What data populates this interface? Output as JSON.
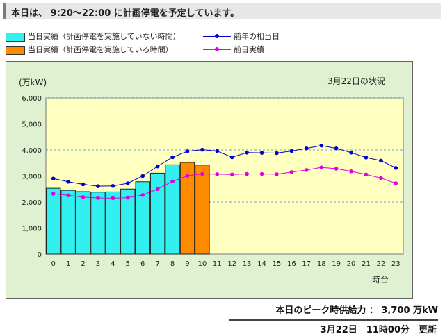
{
  "notice": "本日は、 9:20～22:00 に計画停電を予定しています。",
  "legend": {
    "actual_no_outage": "当日実績（計画停電を実施していない時間）",
    "actual_outage": "当日実績（計画停電を実施している時間）",
    "last_year": "前年の相当日",
    "previous_day": "前日実績"
  },
  "colors": {
    "bar_no_outage": "#33f0f0",
    "bar_outage": "#ff8a00",
    "line_last_year": "#0000cc",
    "line_previous_day": "#e000e0",
    "plot_bg": "#ffffbf",
    "panel_bg": "#dff1d0"
  },
  "chart_data": {
    "type": "bar",
    "unit_label": "(万kW)",
    "status_label": "3月22日の状況",
    "xlabel": "時台",
    "ylim": [
      0,
      6000
    ],
    "yticks": [
      0,
      1000,
      2000,
      3000,
      4000,
      5000,
      6000
    ],
    "ytick_labels": [
      "0",
      "1,000",
      "2,000",
      "3,000",
      "4,000",
      "5,000",
      "6,000"
    ],
    "categories": [
      "0",
      "1",
      "2",
      "3",
      "4",
      "5",
      "6",
      "7",
      "8",
      "9",
      "10",
      "11",
      "12",
      "13",
      "14",
      "15",
      "16",
      "17",
      "18",
      "19",
      "20",
      "21",
      "22",
      "23"
    ],
    "bars": {
      "actual_no_outage": [
        2530,
        2450,
        2400,
        2380,
        2390,
        2500,
        2780,
        3110,
        3430,
        null,
        null
      ],
      "actual_outage": [
        null,
        null,
        null,
        null,
        null,
        null,
        null,
        null,
        null,
        3520,
        3420
      ]
    },
    "series": [
      {
        "name": "前年の相当日",
        "values": [
          2900,
          2780,
          2680,
          2610,
          2620,
          2720,
          3000,
          3370,
          3720,
          3950,
          4010,
          3960,
          3720,
          3900,
          3890,
          3880,
          3960,
          4060,
          4170,
          4060,
          3900,
          3710,
          3590,
          3310
        ]
      },
      {
        "name": "前日実績",
        "values": [
          2320,
          2260,
          2190,
          2160,
          2150,
          2170,
          2270,
          2500,
          2790,
          3010,
          3080,
          3070,
          3060,
          3080,
          3080,
          3070,
          3150,
          3230,
          3330,
          3280,
          3180,
          3060,
          2920,
          2720
        ]
      }
    ]
  },
  "footer": {
    "peak_supply": "本日のピーク時供給力 ： 3,700 万kW",
    "updated": "3月22日　11時00分　更新"
  }
}
